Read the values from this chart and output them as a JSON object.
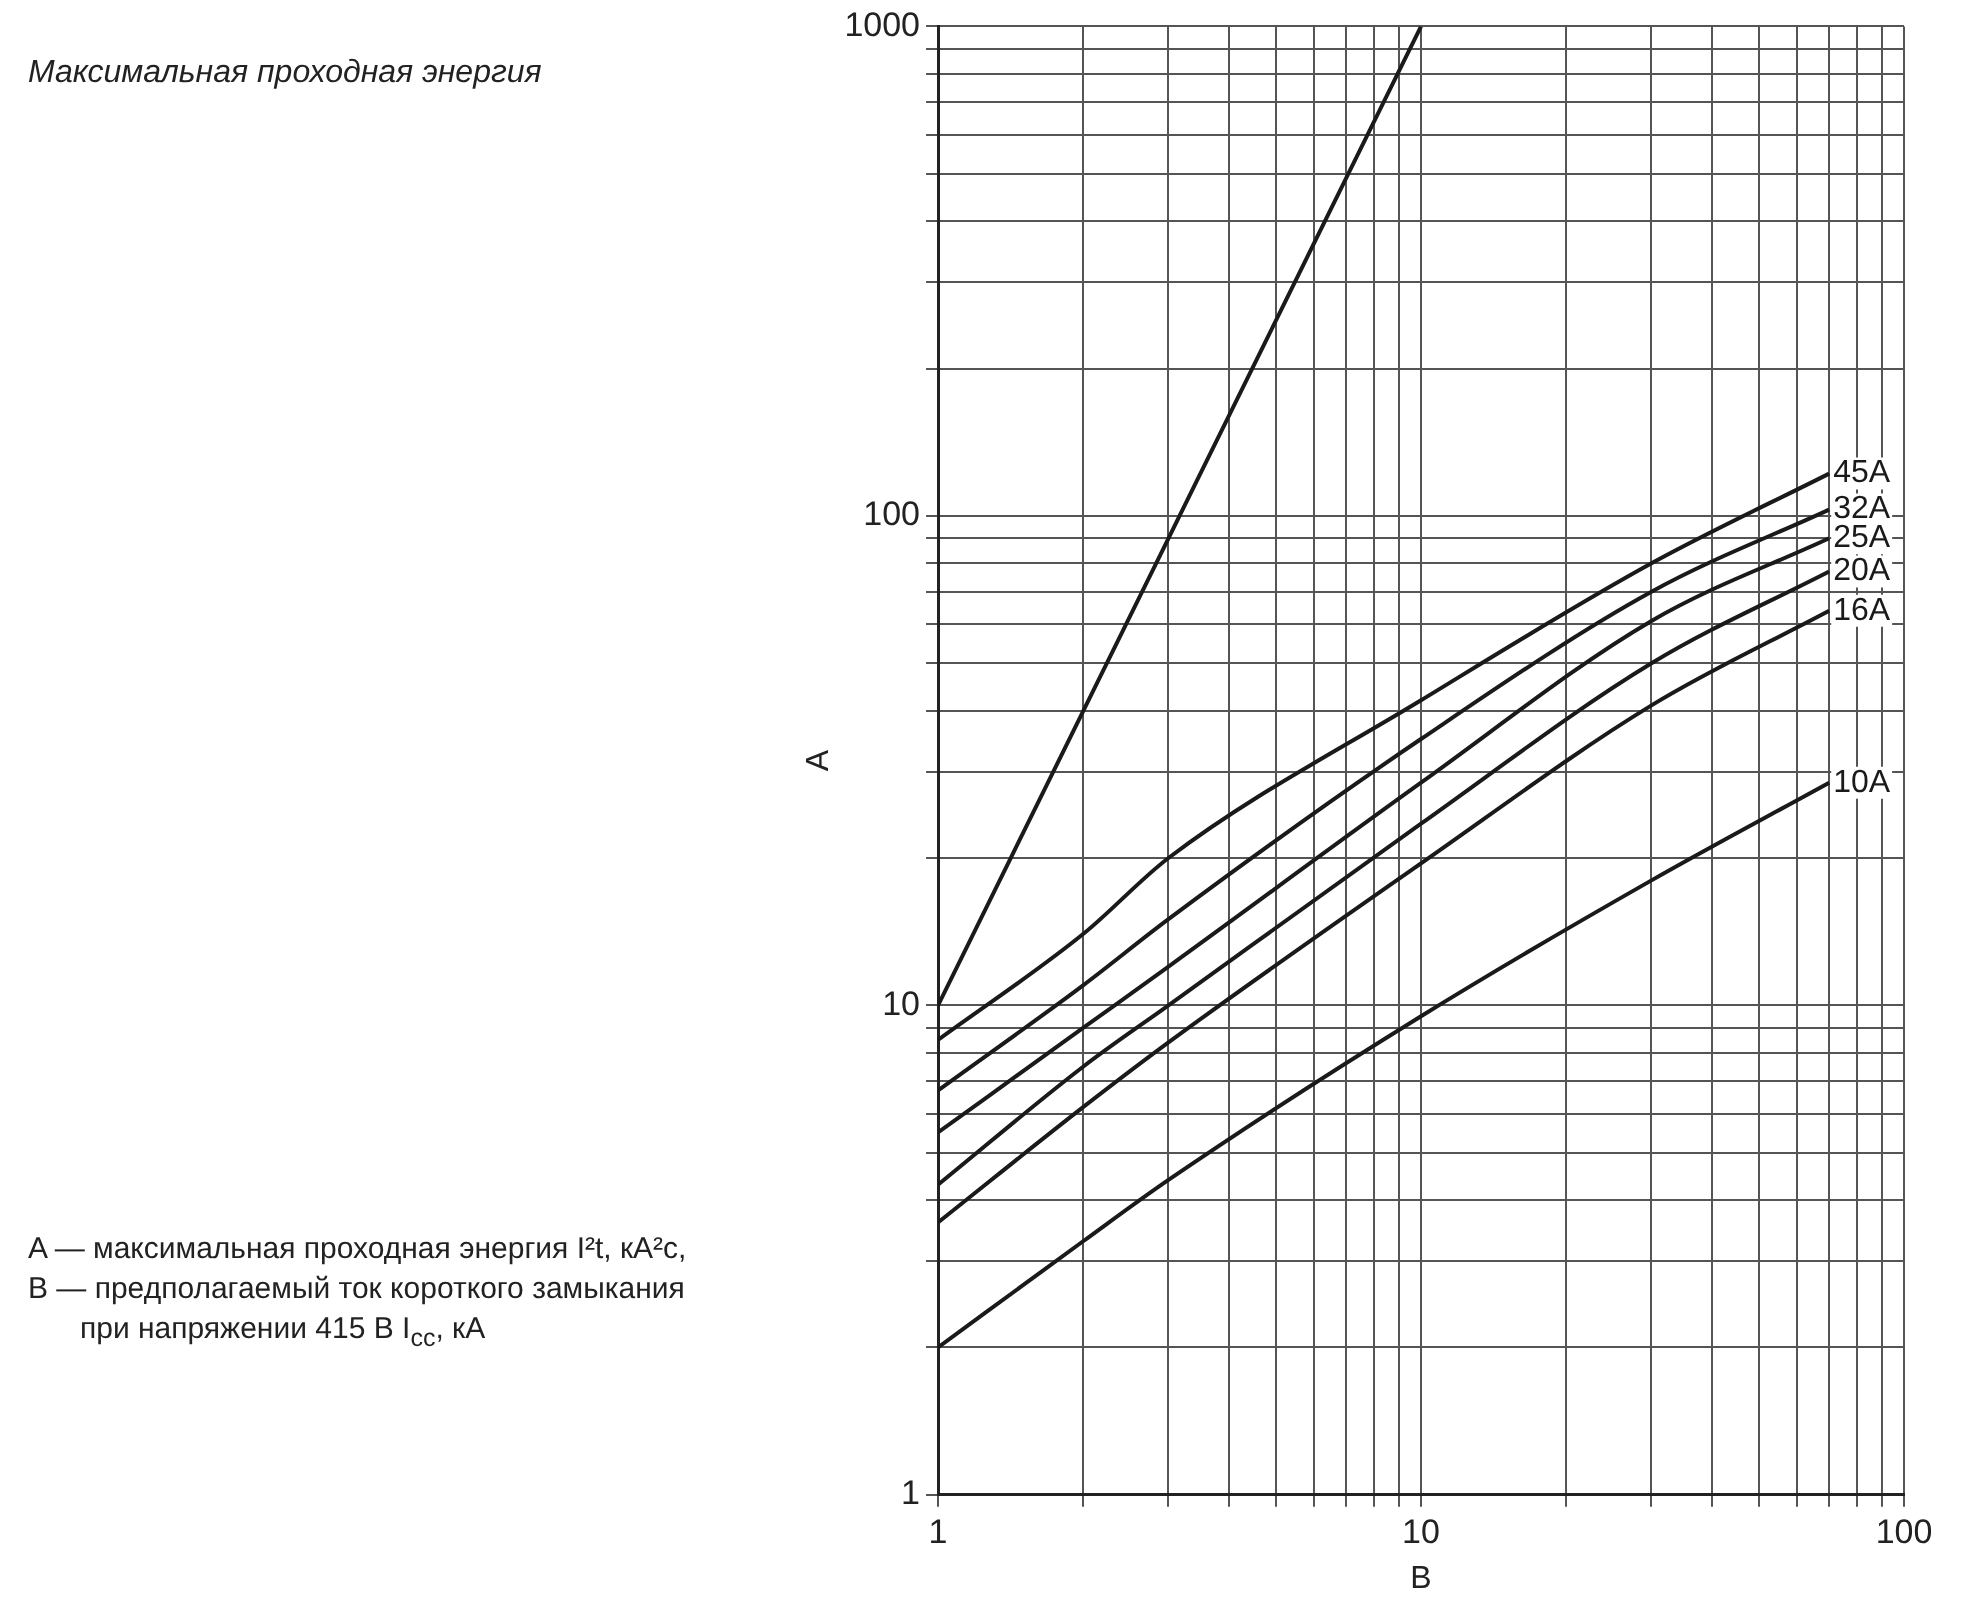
{
  "chart_data": {
    "type": "line",
    "title": "Максимальная проходная энергия",
    "xlabel": "B",
    "ylabel": "A",
    "annotations": [
      "A — максимальная проходная энергия I²t, кА²с,",
      "B — предполагаемый ток короткого замыкания при напряжении 415 В I$_{cc}$, кА"
    ],
    "log": "xy",
    "grid": true,
    "legend": false,
    "marker": "none",
    "line_style": "solid",
    "xlim": [
      1,
      100
    ],
    "ylim": [
      1,
      1000
    ],
    "xticks": [
      1,
      {
        "value": 2,
        "label": null
      },
      {
        "value": 3,
        "label": null
      },
      {
        "value": 4,
        "label": null
      },
      {
        "value": 5,
        "label": null
      },
      {
        "value": 6,
        "label": null
      },
      {
        "value": 7,
        "label": null
      },
      {
        "value": 8,
        "label": null
      },
      {
        "value": 9,
        "label": null
      },
      10,
      {
        "value": 20,
        "label": null
      },
      {
        "value": 30,
        "label": null
      },
      {
        "value": 40,
        "label": null
      },
      {
        "value": 50,
        "label": null
      },
      {
        "value": 60,
        "label": null
      },
      {
        "value": 70,
        "label": null
      },
      {
        "value": 80,
        "label": null
      },
      {
        "value": 90,
        "label": null
      },
      100
    ],
    "yticks": [
      1,
      {
        "value": 2,
        "label": null
      },
      {
        "value": 3,
        "label": null
      },
      {
        "value": 4,
        "label": null
      },
      {
        "value": 5,
        "label": null
      },
      {
        "value": 6,
        "label": null
      },
      {
        "value": 7,
        "label": null
      },
      {
        "value": 8,
        "label": null
      },
      {
        "value": 9,
        "label": null
      },
      10,
      {
        "value": 20,
        "label": null
      },
      {
        "value": 30,
        "label": null
      },
      {
        "value": 40,
        "label": null
      },
      {
        "value": 50,
        "label": null
      },
      {
        "value": 60,
        "label": null
      },
      {
        "value": 70,
        "label": null
      },
      {
        "value": 80,
        "label": null
      },
      {
        "value": 90,
        "label": null
      },
      100,
      {
        "value": 200,
        "label": null
      },
      {
        "value": 300,
        "label": null
      },
      {
        "value": 400,
        "label": null
      },
      {
        "value": 500,
        "label": null
      },
      {
        "value": 600,
        "label": null
      },
      {
        "value": 700,
        "label": null
      },
      {
        "value": 800,
        "label": null
      },
      {
        "value": 900,
        "label": null
      },
      1000
    ],
    "series": [
      {
        "color": "#1a1a1a",
        "x": [
          1,
          2,
          3,
          5,
          10
        ],
        "values": [
          10,
          40,
          90,
          250,
          1000
        ]
      },
      {
        "name": "45A",
        "color": "#1a1a1a",
        "x": [
          1,
          2,
          3,
          10,
          30,
          70
        ],
        "values": [
          8.5,
          14,
          20,
          42,
          80,
          122
        ]
      },
      {
        "name": "32A",
        "color": "#1a1a1a",
        "x": [
          1,
          2,
          3,
          10,
          30,
          70
        ],
        "values": [
          6.7,
          11,
          15,
          35,
          70,
          103
        ]
      },
      {
        "name": "25A",
        "color": "#1a1a1a",
        "x": [
          1,
          2,
          3,
          10,
          30,
          70
        ],
        "values": [
          5.5,
          9,
          12,
          28.5,
          61,
          90
        ]
      },
      {
        "name": "20A",
        "color": "#1a1a1a",
        "x": [
          1,
          2,
          3,
          10,
          30,
          70
        ],
        "values": [
          4.3,
          7.5,
          10,
          23.5,
          50,
          77
        ]
      },
      {
        "name": "16A",
        "color": "#1a1a1a",
        "x": [
          1,
          2,
          3,
          10,
          30,
          70
        ],
        "values": [
          3.6,
          6.2,
          8.4,
          19.5,
          41,
          64
        ]
      },
      {
        "name": "10A",
        "color": "#1a1a1a",
        "x": [
          1,
          2,
          3,
          10,
          30,
          70
        ],
        "values": [
          2,
          3.3,
          4.4,
          9.5,
          18,
          28.5
        ]
      }
    ]
  }
}
